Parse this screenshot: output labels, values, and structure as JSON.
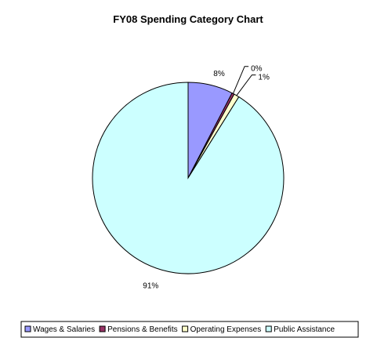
{
  "chart_data": {
    "type": "pie",
    "title": "FY08 Spending Category Chart",
    "slices": [
      {
        "label": "Wages & Salaries",
        "value": 7.6,
        "display": "8%",
        "color": "#9999ff"
      },
      {
        "label": "Pensions & Benefits",
        "value": 0.4,
        "display": "0%",
        "color": "#993366"
      },
      {
        "label": "Operating Expenses",
        "value": 0.9,
        "display": "1%",
        "color": "#ffffcc"
      },
      {
        "label": "Public Assistance",
        "value": 91.1,
        "display": "91%",
        "color": "#ccffff"
      }
    ],
    "legend_position": "bottom"
  }
}
